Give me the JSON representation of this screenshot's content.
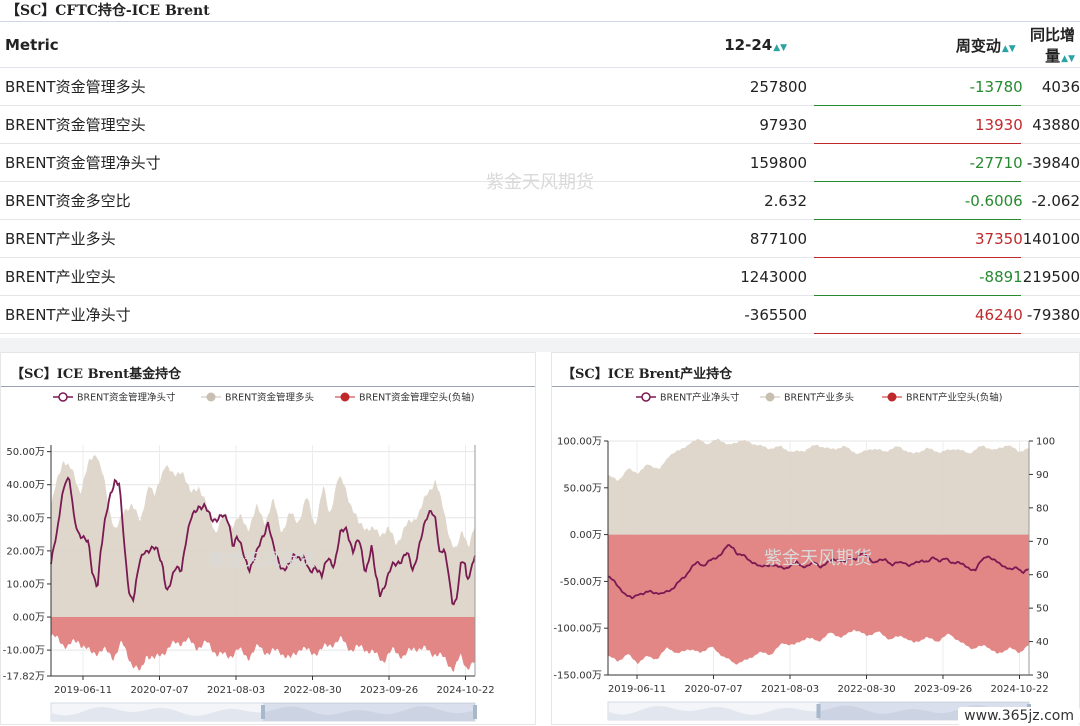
{
  "top_title": "【SC】CFTC持仓-ICE Brent",
  "table": {
    "headers": [
      "Metric",
      "12-24",
      "周变动",
      "同比增量"
    ],
    "rows": [
      {
        "name": "BRENT资金管理多头",
        "value": "257800",
        "change": "-13780",
        "yoy": "4036"
      },
      {
        "name": "BRENT资金管理空头",
        "value": "97930",
        "change": "13930",
        "yoy": "43880"
      },
      {
        "name": "BRENT资金管理净头寸",
        "value": "159800",
        "change": "-27710",
        "yoy": "-39840"
      },
      {
        "name": "BRENT资金多空比",
        "value": "2.632",
        "change": "-0.6006",
        "yoy": "-2.062"
      },
      {
        "name": "BRENT产业多头",
        "value": "877100",
        "change": "37350",
        "yoy": "140100"
      },
      {
        "name": "BRENT产业空头",
        "value": "1243000",
        "change": "-8891",
        "yoy": "219500"
      },
      {
        "name": "BRENT产业净头寸",
        "value": "-365500",
        "change": "46240",
        "yoy": "-79380"
      }
    ]
  },
  "watermark": "紫金天风期货",
  "site_badge": "www.365jz.com",
  "colors": {
    "positive": "#c0292c",
    "negative": "#268a30",
    "net_line": "#7a1a52",
    "long_area": "#ddd5c8",
    "short_area": "#e07f80"
  },
  "chart_data": [
    {
      "type": "area",
      "title": "【SC】ICE Brent基金持仓",
      "legend": [
        "BRENT资金管理净头寸",
        "BRENT资金管理多头",
        "BRENT资金管理空头(负轴)"
      ],
      "legend_position": "top",
      "x_ticks": [
        "2019-06-11",
        "2020-07-07",
        "2021-08-03",
        "2022-08-30",
        "2023-09-26",
        "2024-10-22"
      ],
      "y_ticks": [
        "50.00万",
        "40.00万",
        "30.00万",
        "20.00万",
        "10.00万",
        "0.00万",
        "-10.00万",
        "-17.82万"
      ],
      "y_tick_values": [
        50,
        40,
        30,
        20,
        10,
        0,
        -10,
        -17.82
      ],
      "ylim": [
        -17.82,
        52
      ],
      "unit": "万",
      "x_range": [
        "2019-04",
        "2024-12"
      ],
      "long_anchors": [
        [
          0,
          33
        ],
        [
          5,
          40
        ],
        [
          12,
          48
        ],
        [
          20,
          44
        ],
        [
          28,
          38
        ],
        [
          36,
          46
        ],
        [
          44,
          50
        ],
        [
          50,
          43
        ],
        [
          56,
          32
        ],
        [
          62,
          27
        ],
        [
          70,
          31
        ],
        [
          78,
          35
        ],
        [
          86,
          28
        ],
        [
          94,
          41
        ],
        [
          100,
          36
        ],
        [
          110,
          47
        ],
        [
          118,
          42
        ],
        [
          126,
          45
        ],
        [
          134,
          37
        ],
        [
          142,
          40
        ],
        [
          150,
          33
        ],
        [
          158,
          26
        ],
        [
          166,
          30
        ],
        [
          174,
          28
        ],
        [
          182,
          30
        ],
        [
          190,
          27
        ],
        [
          198,
          33
        ],
        [
          206,
          29
        ],
        [
          214,
          35
        ],
        [
          222,
          26
        ],
        [
          230,
          31
        ],
        [
          238,
          29
        ],
        [
          246,
          36
        ],
        [
          254,
          28
        ],
        [
          262,
          39
        ],
        [
          268,
          31
        ],
        [
          276,
          42
        ],
        [
          282,
          40
        ],
        [
          290,
          33
        ],
        [
          296,
          28
        ],
        [
          306,
          27
        ],
        [
          316,
          25
        ],
        [
          324,
          27
        ],
        [
          332,
          22
        ],
        [
          340,
          27
        ],
        [
          348,
          29
        ],
        [
          356,
          33
        ],
        [
          364,
          38
        ],
        [
          370,
          42
        ],
        [
          376,
          34
        ],
        [
          384,
          24
        ],
        [
          390,
          20
        ],
        [
          396,
          26
        ],
        [
          402,
          22
        ],
        [
          408,
          27
        ]
      ],
      "net_anchors": [
        [
          0,
          16
        ],
        [
          3,
          21
        ],
        [
          6,
          25
        ],
        [
          10,
          36
        ],
        [
          14,
          42
        ],
        [
          18,
          41
        ],
        [
          22,
          30
        ],
        [
          26,
          26
        ],
        [
          30,
          25
        ],
        [
          36,
          22
        ],
        [
          40,
          13
        ],
        [
          45,
          10
        ],
        [
          48,
          20
        ],
        [
          52,
          28
        ],
        [
          58,
          38
        ],
        [
          62,
          42
        ],
        [
          66,
          40
        ],
        [
          70,
          25
        ],
        [
          72,
          17
        ],
        [
          76,
          7
        ],
        [
          80,
          6
        ],
        [
          85,
          15
        ],
        [
          90,
          20
        ],
        [
          96,
          21
        ],
        [
          102,
          20
        ],
        [
          108,
          16
        ],
        [
          112,
          8
        ],
        [
          116,
          10
        ],
        [
          121,
          15
        ],
        [
          126,
          15
        ],
        [
          130,
          22
        ],
        [
          136,
          30
        ],
        [
          142,
          34
        ],
        [
          148,
          33
        ],
        [
          155,
          30
        ],
        [
          160,
          30
        ],
        [
          166,
          30
        ],
        [
          172,
          29
        ],
        [
          176,
          22
        ],
        [
          180,
          24
        ],
        [
          186,
          19
        ],
        [
          192,
          15
        ],
        [
          198,
          18
        ],
        [
          204,
          24
        ],
        [
          210,
          29
        ],
        [
          214,
          22
        ],
        [
          218,
          18
        ],
        [
          224,
          15
        ],
        [
          230,
          15
        ],
        [
          236,
          19
        ],
        [
          244,
          18
        ],
        [
          250,
          13
        ],
        [
          256,
          16
        ],
        [
          262,
          12
        ],
        [
          268,
          18
        ],
        [
          274,
          16
        ],
        [
          280,
          25
        ],
        [
          286,
          27
        ],
        [
          292,
          20
        ],
        [
          298,
          23
        ],
        [
          304,
          14
        ],
        [
          310,
          21
        ],
        [
          314,
          12
        ],
        [
          318,
          7
        ],
        [
          324,
          11
        ],
        [
          330,
          15
        ],
        [
          336,
          17
        ],
        [
          344,
          19
        ],
        [
          350,
          14
        ],
        [
          356,
          22
        ],
        [
          364,
          30
        ],
        [
          368,
          33
        ],
        [
          372,
          30
        ],
        [
          376,
          18
        ],
        [
          380,
          20
        ],
        [
          384,
          15
        ],
        [
          388,
          5
        ],
        [
          392,
          4
        ],
        [
          396,
          15
        ],
        [
          400,
          18
        ],
        [
          402,
          12
        ],
        [
          406,
          14
        ],
        [
          410,
          18
        ]
      ],
      "short_anchors": [
        [
          0,
          -6
        ],
        [
          8,
          -7
        ],
        [
          16,
          -9
        ],
        [
          26,
          -7
        ],
        [
          38,
          -11
        ],
        [
          50,
          -10
        ],
        [
          60,
          -12
        ],
        [
          68,
          -8
        ],
        [
          78,
          -14
        ],
        [
          86,
          -17
        ],
        [
          92,
          -11
        ],
        [
          100,
          -13
        ],
        [
          110,
          -10
        ],
        [
          120,
          -8
        ],
        [
          130,
          -7
        ],
        [
          140,
          -9
        ],
        [
          150,
          -8
        ],
        [
          160,
          -11
        ],
        [
          170,
          -12
        ],
        [
          180,
          -10
        ],
        [
          190,
          -12
        ],
        [
          200,
          -9
        ],
        [
          210,
          -11
        ],
        [
          220,
          -10
        ],
        [
          230,
          -13
        ],
        [
          240,
          -9
        ],
        [
          250,
          -11
        ],
        [
          260,
          -10
        ],
        [
          270,
          -8
        ],
        [
          280,
          -7
        ],
        [
          290,
          -10
        ],
        [
          300,
          -9
        ],
        [
          310,
          -11
        ],
        [
          320,
          -13
        ],
        [
          330,
          -10
        ],
        [
          340,
          -12
        ],
        [
          350,
          -9
        ],
        [
          360,
          -10
        ],
        [
          370,
          -11
        ],
        [
          380,
          -13
        ],
        [
          388,
          -16
        ],
        [
          394,
          -12
        ],
        [
          400,
          -15
        ],
        [
          408,
          -14
        ]
      ]
    },
    {
      "type": "area",
      "title": "【SC】ICE Brent产业持仓",
      "legend": [
        "BRENT产业净头寸",
        "BRENT产业多头",
        "BRENT产业空头(负轴)"
      ],
      "legend_position": "top",
      "x_ticks": [
        "2019-06-11",
        "2020-07-07",
        "2021-08-03",
        "2022-08-30",
        "2023-09-26",
        "2024-10-22"
      ],
      "y_ticks": [
        "100.00万",
        "50.00万",
        "0.00万",
        "-50.00万",
        "-100.00万",
        "-150.00万"
      ],
      "y_tick_values": [
        100,
        50,
        0,
        -50,
        -100,
        -150
      ],
      "ylim": [
        -150,
        100
      ],
      "y2_ticks": [
        "100",
        "90",
        "80",
        "70",
        "60",
        "50",
        "40",
        "30"
      ],
      "y2_tick_values": [
        100,
        90,
        80,
        70,
        60,
        50,
        40,
        30
      ],
      "y2lim": [
        30,
        100
      ],
      "unit": "万",
      "x_range": [
        "2019-04",
        "2024-12"
      ],
      "long_anchors": [
        [
          0,
          63
        ],
        [
          10,
          58
        ],
        [
          20,
          70
        ],
        [
          30,
          66
        ],
        [
          40,
          75
        ],
        [
          52,
          70
        ],
        [
          62,
          86
        ],
        [
          72,
          90
        ],
        [
          82,
          98
        ],
        [
          92,
          102
        ],
        [
          100,
          96
        ],
        [
          110,
          103
        ],
        [
          120,
          95
        ],
        [
          132,
          101
        ],
        [
          146,
          97
        ],
        [
          160,
          92
        ],
        [
          172,
          94
        ],
        [
          184,
          88
        ],
        [
          196,
          90
        ],
        [
          208,
          96
        ],
        [
          222,
          91
        ],
        [
          236,
          94
        ],
        [
          250,
          86
        ],
        [
          262,
          92
        ],
        [
          276,
          89
        ],
        [
          290,
          94
        ],
        [
          304,
          86
        ],
        [
          318,
          92
        ],
        [
          332,
          88
        ],
        [
          346,
          92
        ],
        [
          360,
          87
        ],
        [
          374,
          95
        ],
        [
          386,
          90
        ],
        [
          398,
          96
        ],
        [
          410,
          89
        ],
        [
          420,
          92
        ]
      ],
      "net_anchors": [
        [
          0,
          -45
        ],
        [
          6,
          -50
        ],
        [
          12,
          -57
        ],
        [
          18,
          -65
        ],
        [
          24,
          -68
        ],
        [
          30,
          -63
        ],
        [
          36,
          -64
        ],
        [
          42,
          -60
        ],
        [
          48,
          -62
        ],
        [
          54,
          -64
        ],
        [
          60,
          -60
        ],
        [
          66,
          -57
        ],
        [
          72,
          -50
        ],
        [
          78,
          -44
        ],
        [
          84,
          -35
        ],
        [
          90,
          -30
        ],
        [
          96,
          -33
        ],
        [
          102,
          -28
        ],
        [
          108,
          -26
        ],
        [
          114,
          -20
        ],
        [
          120,
          -12
        ],
        [
          126,
          -14
        ],
        [
          130,
          -20
        ],
        [
          136,
          -22
        ],
        [
          142,
          -28
        ],
        [
          148,
          -30
        ],
        [
          154,
          -35
        ],
        [
          160,
          -33
        ],
        [
          166,
          -32
        ],
        [
          172,
          -35
        ],
        [
          178,
          -36
        ],
        [
          184,
          -33
        ],
        [
          190,
          -30
        ],
        [
          196,
          -34
        ],
        [
          202,
          -33
        ],
        [
          208,
          -30
        ],
        [
          214,
          -34
        ],
        [
          220,
          -31
        ],
        [
          226,
          -27
        ],
        [
          232,
          -26
        ],
        [
          238,
          -30
        ],
        [
          244,
          -25
        ],
        [
          250,
          -26
        ],
        [
          256,
          -20
        ],
        [
          262,
          -24
        ],
        [
          268,
          -30
        ],
        [
          274,
          -28
        ],
        [
          280,
          -26
        ],
        [
          286,
          -33
        ],
        [
          292,
          -30
        ],
        [
          298,
          -29
        ],
        [
          304,
          -34
        ],
        [
          310,
          -30
        ],
        [
          316,
          -27
        ],
        [
          322,
          -30
        ],
        [
          328,
          -24
        ],
        [
          334,
          -28
        ],
        [
          340,
          -26
        ],
        [
          346,
          -30
        ],
        [
          352,
          -29
        ],
        [
          358,
          -33
        ],
        [
          364,
          -36
        ],
        [
          370,
          -38
        ],
        [
          376,
          -28
        ],
        [
          382,
          -22
        ],
        [
          388,
          -27
        ],
        [
          394,
          -31
        ],
        [
          400,
          -34
        ],
        [
          406,
          -38
        ],
        [
          412,
          -35
        ],
        [
          418,
          -40
        ],
        [
          424,
          -37
        ]
      ],
      "short_anchors": [
        [
          0,
          -130
        ],
        [
          10,
          -135
        ],
        [
          20,
          -128
        ],
        [
          30,
          -137
        ],
        [
          40,
          -130
        ],
        [
          50,
          -133
        ],
        [
          60,
          -120
        ],
        [
          70,
          -128
        ],
        [
          80,
          -122
        ],
        [
          92,
          -126
        ],
        [
          104,
          -120
        ],
        [
          116,
          -130
        ],
        [
          128,
          -138
        ],
        [
          140,
          -134
        ],
        [
          152,
          -126
        ],
        [
          164,
          -128
        ],
        [
          176,
          -116
        ],
        [
          188,
          -118
        ],
        [
          200,
          -110
        ],
        [
          212,
          -114
        ],
        [
          224,
          -105
        ],
        [
          236,
          -110
        ],
        [
          248,
          -101
        ],
        [
          260,
          -108
        ],
        [
          272,
          -104
        ],
        [
          284,
          -112
        ],
        [
          296,
          -108
        ],
        [
          308,
          -116
        ],
        [
          320,
          -110
        ],
        [
          332,
          -114
        ],
        [
          344,
          -106
        ],
        [
          356,
          -116
        ],
        [
          368,
          -122
        ],
        [
          380,
          -118
        ],
        [
          392,
          -128
        ],
        [
          404,
          -121
        ],
        [
          414,
          -126
        ],
        [
          424,
          -118
        ]
      ]
    }
  ]
}
